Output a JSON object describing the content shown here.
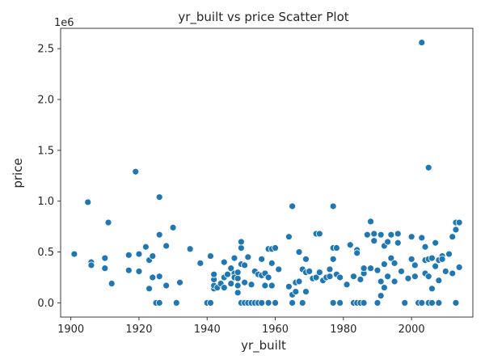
{
  "chart_data": {
    "type": "scatter",
    "title": "yr_built vs price Scatter Plot",
    "xlabel": "yr_built",
    "ylabel": "price",
    "y_offset_label": "1e6",
    "xlim": [
      1897,
      2018
    ],
    "ylim": [
      -0.14,
      2.7
    ],
    "y_unit": 1000000,
    "xticks": [
      1900,
      1920,
      1940,
      1960,
      1980,
      2000
    ],
    "yticks": [
      0.0,
      0.5,
      1.0,
      1.5,
      2.0,
      2.5
    ],
    "ytick_labels": [
      "0.0",
      "0.5",
      "1.0",
      "1.5",
      "2.0",
      "2.5"
    ],
    "grid": false,
    "legend": "none",
    "point_color": "#1f77b4",
    "points": [
      [
        1901,
        0.48
      ],
      [
        1905,
        0.99
      ],
      [
        1906,
        0.4
      ],
      [
        1906,
        0.37
      ],
      [
        1910,
        0.44
      ],
      [
        1910,
        0.34
      ],
      [
        1911,
        0.79
      ],
      [
        1912,
        0.19
      ],
      [
        1917,
        0.47
      ],
      [
        1917,
        0.32
      ],
      [
        1919,
        1.29
      ],
      [
        1920,
        0.31
      ],
      [
        1920,
        0.48
      ],
      [
        1922,
        0.55
      ],
      [
        1923,
        0.42
      ],
      [
        1923,
        0.14
      ],
      [
        1924,
        0.25
      ],
      [
        1924,
        0.46
      ],
      [
        1925,
        0.0
      ],
      [
        1926,
        0.0
      ],
      [
        1926,
        0.26
      ],
      [
        1926,
        0.67
      ],
      [
        1926,
        1.04
      ],
      [
        1928,
        0.17
      ],
      [
        1928,
        0.56
      ],
      [
        1930,
        0.74
      ],
      [
        1931,
        0.0
      ],
      [
        1932,
        0.2
      ],
      [
        1935,
        0.53
      ],
      [
        1938,
        0.39
      ],
      [
        1940,
        0.0
      ],
      [
        1941,
        0.0
      ],
      [
        1941,
        0.46
      ],
      [
        1942,
        0.14
      ],
      [
        1942,
        0.17
      ],
      [
        1942,
        0.23
      ],
      [
        1942,
        0.28
      ],
      [
        1943,
        0.15
      ],
      [
        1944,
        0.19
      ],
      [
        1945,
        0.15
      ],
      [
        1945,
        0.4
      ],
      [
        1945,
        0.25
      ],
      [
        1946,
        0.28
      ],
      [
        1947,
        0.19
      ],
      [
        1947,
        0.34
      ],
      [
        1948,
        0.29
      ],
      [
        1948,
        0.44
      ],
      [
        1948,
        0.25
      ],
      [
        1949,
        0.24
      ],
      [
        1949,
        0.17
      ],
      [
        1949,
        0.3
      ],
      [
        1949,
        0.1
      ],
      [
        1950,
        0.38
      ],
      [
        1950,
        0.0
      ],
      [
        1950,
        0.54
      ],
      [
        1950,
        0.6
      ],
      [
        1951,
        0.0
      ],
      [
        1951,
        0.2
      ],
      [
        1951,
        0.37
      ],
      [
        1952,
        0.0
      ],
      [
        1952,
        0.45
      ],
      [
        1953,
        0.18
      ],
      [
        1953,
        0.0
      ],
      [
        1954,
        0.31
      ],
      [
        1954,
        0.0
      ],
      [
        1955,
        0.28
      ],
      [
        1955,
        0.0
      ],
      [
        1956,
        0.43
      ],
      [
        1956,
        0.0
      ],
      [
        1956,
        0.27
      ],
      [
        1957,
        0.17
      ],
      [
        1957,
        0.29
      ],
      [
        1958,
        0.0
      ],
      [
        1958,
        0.25
      ],
      [
        1958,
        0.53
      ],
      [
        1959,
        0.53
      ],
      [
        1959,
        0.39
      ],
      [
        1959,
        0.17
      ],
      [
        1960,
        0.0
      ],
      [
        1960,
        0.54
      ],
      [
        1961,
        0.33
      ],
      [
        1964,
        0.65
      ],
      [
        1964,
        0.16
      ],
      [
        1965,
        0.95
      ],
      [
        1965,
        0.08
      ],
      [
        1965,
        0.0
      ],
      [
        1966,
        0.2
      ],
      [
        1966,
        0.11
      ],
      [
        1967,
        0.21
      ],
      [
        1967,
        0.5
      ],
      [
        1968,
        0.0
      ],
      [
        1968,
        0.33
      ],
      [
        1969,
        0.43
      ],
      [
        1969,
        0.11
      ],
      [
        1969,
        0.3
      ],
      [
        1970,
        0.31
      ],
      [
        1971,
        0.24
      ],
      [
        1972,
        0.25
      ],
      [
        1972,
        0.68
      ],
      [
        1973,
        0.68
      ],
      [
        1973,
        0.3
      ],
      [
        1974,
        0.22
      ],
      [
        1975,
        0.25
      ],
      [
        1976,
        0.33
      ],
      [
        1976,
        0.26
      ],
      [
        1977,
        0.95
      ],
      [
        1977,
        0.43
      ],
      [
        1977,
        0.54
      ],
      [
        1977,
        0.0
      ],
      [
        1978,
        0.28
      ],
      [
        1978,
        0.54
      ],
      [
        1979,
        0.0
      ],
      [
        1979,
        0.25
      ],
      [
        1981,
        0.18
      ],
      [
        1982,
        0.57
      ],
      [
        1983,
        0.0
      ],
      [
        1983,
        0.26
      ],
      [
        1984,
        0.0
      ],
      [
        1984,
        0.52
      ],
      [
        1984,
        0.49
      ],
      [
        1985,
        0.0
      ],
      [
        1985,
        0.23
      ],
      [
        1986,
        0.29
      ],
      [
        1986,
        0.34
      ],
      [
        1986,
        0.0
      ],
      [
        1987,
        0.67
      ],
      [
        1988,
        0.8
      ],
      [
        1988,
        0.34
      ],
      [
        1989,
        0.68
      ],
      [
        1989,
        0.61
      ],
      [
        1990,
        0.32
      ],
      [
        1990,
        0.0
      ],
      [
        1991,
        0.21
      ],
      [
        1991,
        0.07
      ],
      [
        1991,
        0.67
      ],
      [
        1992,
        0.15
      ],
      [
        1992,
        0.38
      ],
      [
        1992,
        0.56
      ],
      [
        1993,
        0.6
      ],
      [
        1993,
        0.26
      ],
      [
        1994,
        0.44
      ],
      [
        1994,
        0.67
      ],
      [
        1995,
        0.21
      ],
      [
        1995,
        0.39
      ],
      [
        1996,
        0.59
      ],
      [
        1996,
        0.68
      ],
      [
        1997,
        0.31
      ],
      [
        1998,
        0.0
      ],
      [
        1999,
        0.24
      ],
      [
        2000,
        0.43
      ],
      [
        2000,
        0.65
      ],
      [
        2001,
        0.37
      ],
      [
        2001,
        0.26
      ],
      [
        2002,
        0.0
      ],
      [
        2003,
        0.0
      ],
      [
        2003,
        0.64
      ],
      [
        2003,
        2.56
      ],
      [
        2004,
        0.29
      ],
      [
        2004,
        0.42
      ],
      [
        2004,
        0.55
      ],
      [
        2005,
        1.33
      ],
      [
        2005,
        0.26
      ],
      [
        2005,
        0.43
      ],
      [
        2005,
        0.0
      ],
      [
        2006,
        0.14
      ],
      [
        2006,
        0.44
      ],
      [
        2006,
        0.0
      ],
      [
        2007,
        0.36
      ],
      [
        2007,
        0.59
      ],
      [
        2008,
        0.22
      ],
      [
        2008,
        0.42
      ],
      [
        2008,
        0.0
      ],
      [
        2009,
        0.46
      ],
      [
        2009,
        0.43
      ],
      [
        2010,
        0.31
      ],
      [
        2011,
        0.48
      ],
      [
        2012,
        0.65
      ],
      [
        2012,
        0.29
      ],
      [
        2013,
        0.79
      ],
      [
        2013,
        0.0
      ],
      [
        2013,
        0.72
      ],
      [
        2014,
        0.35
      ],
      [
        2014,
        0.79
      ]
    ]
  }
}
